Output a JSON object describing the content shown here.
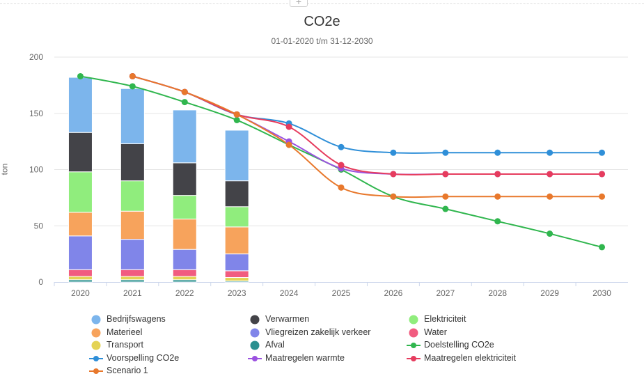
{
  "toolbar": {
    "add_label": "+"
  },
  "chart_data": {
    "type": "bar+line",
    "title": "CO2e",
    "subtitle": "01-01-2020 t/m 31-12-2030",
    "ylabel": "ton",
    "xlabel": "",
    "ylim": [
      0,
      200
    ],
    "yticks": [
      0,
      50,
      100,
      150,
      200
    ],
    "categories": [
      "2020",
      "2021",
      "2022",
      "2023",
      "2024",
      "2025",
      "2026",
      "2027",
      "2028",
      "2029",
      "2030"
    ],
    "grid": true,
    "legend_position": "bottom",
    "stack_series": [
      {
        "name": "Afval",
        "color": "#2b908f",
        "values": [
          2,
          2,
          2,
          1,
          null,
          null,
          null,
          null,
          null,
          null,
          null
        ]
      },
      {
        "name": "Transport",
        "color": "#e4d354",
        "values": [
          3,
          3,
          3,
          3,
          null,
          null,
          null,
          null,
          null,
          null,
          null
        ]
      },
      {
        "name": "Water",
        "color": "#f15c80",
        "values": [
          6,
          6,
          6,
          6,
          null,
          null,
          null,
          null,
          null,
          null,
          null
        ]
      },
      {
        "name": "Vliegreizen zakelijk verkeer",
        "color": "#8085e9",
        "values": [
          30,
          27,
          18,
          15,
          null,
          null,
          null,
          null,
          null,
          null,
          null
        ]
      },
      {
        "name": "Materieel",
        "color": "#f7a35c",
        "values": [
          21,
          25,
          27,
          24,
          null,
          null,
          null,
          null,
          null,
          null,
          null
        ]
      },
      {
        "name": "Elektriciteit",
        "color": "#90ed7d",
        "values": [
          36,
          27,
          21,
          18,
          null,
          null,
          null,
          null,
          null,
          null,
          null
        ]
      },
      {
        "name": "Verwarmen",
        "color": "#434348",
        "values": [
          35,
          33,
          29,
          23,
          null,
          null,
          null,
          null,
          null,
          null,
          null
        ]
      },
      {
        "name": "Bedrijfswagens",
        "color": "#7cb5ec",
        "values": [
          49,
          49,
          47,
          45,
          null,
          null,
          null,
          null,
          null,
          null,
          null
        ]
      }
    ],
    "line_series": [
      {
        "name": "Doelstelling CO2e",
        "color": "#30b64e",
        "values": [
          183,
          174,
          160,
          144,
          122,
          100,
          76,
          65,
          54,
          43,
          31
        ]
      },
      {
        "name": "Voorspelling CO2e",
        "color": "#2f8fd8",
        "values": [
          null,
          183,
          169,
          149,
          141,
          120,
          115,
          115,
          115,
          115,
          115
        ]
      },
      {
        "name": "Maatregelen warmte",
        "color": "#9b51e0",
        "values": [
          null,
          183,
          169,
          149,
          125,
          101,
          96,
          96,
          96,
          96,
          96
        ]
      },
      {
        "name": "Maatregelen elektriciteit",
        "color": "#e63c5e",
        "values": [
          null,
          183,
          169,
          149,
          138,
          104,
          96,
          96,
          96,
          96,
          96
        ]
      },
      {
        "name": "Scenario 1",
        "color": "#e8782c",
        "values": [
          null,
          183,
          169,
          149,
          122,
          84,
          76,
          76,
          76,
          76,
          76
        ]
      }
    ],
    "legend": [
      {
        "name": "Bedrijfswagens",
        "color": "#7cb5ec",
        "kind": "dot"
      },
      {
        "name": "Verwarmen",
        "color": "#434348",
        "kind": "dot"
      },
      {
        "name": "Elektriciteit",
        "color": "#90ed7d",
        "kind": "dot"
      },
      {
        "name": "Materieel",
        "color": "#f7a35c",
        "kind": "dot"
      },
      {
        "name": "Vliegreizen zakelijk verkeer",
        "color": "#8085e9",
        "kind": "dot"
      },
      {
        "name": "Water",
        "color": "#f15c80",
        "kind": "dot"
      },
      {
        "name": "Transport",
        "color": "#e4d354",
        "kind": "dot"
      },
      {
        "name": "Afval",
        "color": "#2b908f",
        "kind": "dot"
      },
      {
        "name": "Doelstelling CO2e",
        "color": "#30b64e",
        "kind": "line"
      },
      {
        "name": "Voorspelling CO2e",
        "color": "#2f8fd8",
        "kind": "line"
      },
      {
        "name": "Maatregelen warmte",
        "color": "#9b51e0",
        "kind": "line"
      },
      {
        "name": "Maatregelen elektriciteit",
        "color": "#e63c5e",
        "kind": "line"
      },
      {
        "name": "Scenario 1",
        "color": "#e8782c",
        "kind": "line"
      }
    ]
  }
}
